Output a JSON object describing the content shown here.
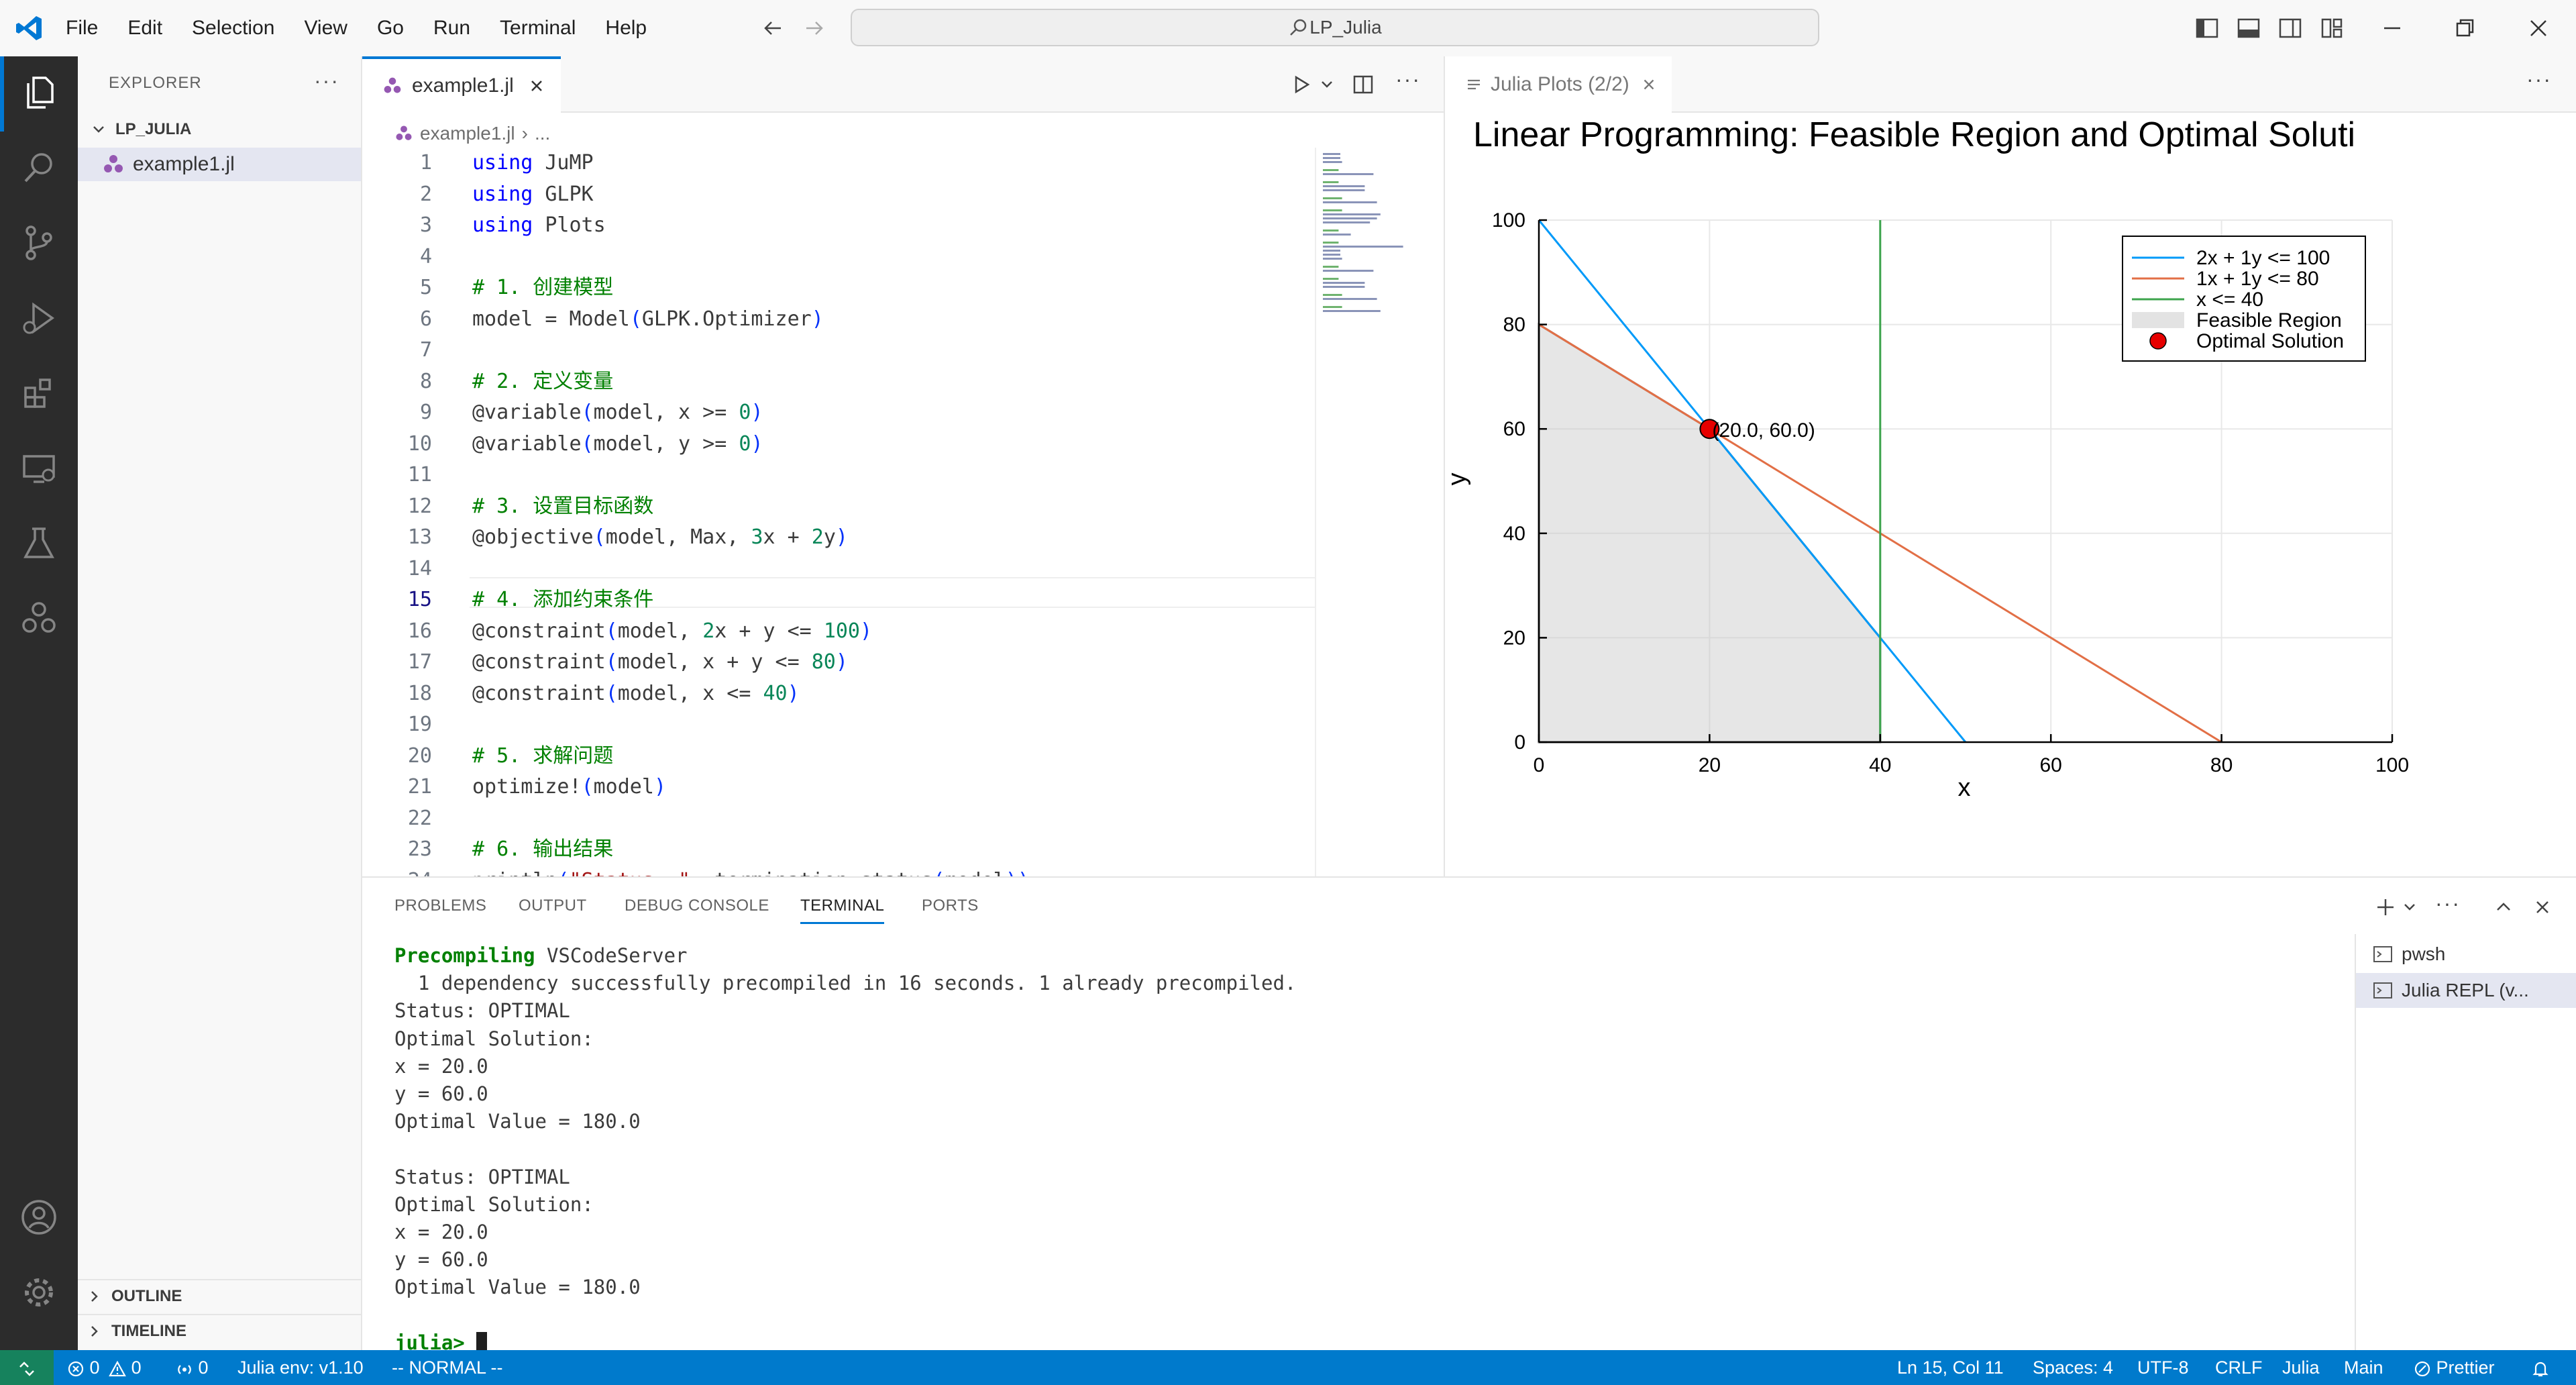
{
  "menu": [
    "File",
    "Edit",
    "Selection",
    "View",
    "Go",
    "Run",
    "Terminal",
    "Help"
  ],
  "search_text": "LP_Julia",
  "explorer": {
    "title": "EXPLORER",
    "folder": "LP_JULIA",
    "file": "example1.jl",
    "outline": "OUTLINE",
    "timeline": "TIMELINE"
  },
  "editor": {
    "tab": "example1.jl",
    "breadcrumb_file": "example1.jl",
    "breadcrumb_more": "...",
    "current_line": 15,
    "lines": [
      "using JuMP",
      "using GLPK",
      "using Plots",
      "",
      "# 1. 创建模型",
      "model = Model(GLPK.Optimizer)",
      "",
      "# 2. 定义变量",
      "@variable(model, x >= 0)",
      "@variable(model, y >= 0)",
      "",
      "# 3. 设置目标函数",
      "@objective(model, Max, 3x + 2y)",
      "",
      "# 4. 添加约束条件",
      "@constraint(model, 2x + y <= 100)",
      "@constraint(model, x + y <= 80)",
      "@constraint(model, x <= 40)",
      "",
      "# 5. 求解问题",
      "optimize!(model)",
      "",
      "# 6. 输出结果",
      "println(\"Status: \", termination_status(model))"
    ]
  },
  "plot_tab": "Julia Plots (2/2)",
  "chart_data": {
    "type": "line",
    "title": "Linear Programming: Feasible Region and Optimal Soluti",
    "xlabel": "x",
    "ylabel": "y",
    "xlim": [
      0,
      100
    ],
    "ylim": [
      0,
      100
    ],
    "xticks": [
      0,
      20,
      40,
      60,
      80,
      100
    ],
    "yticks": [
      0,
      20,
      40,
      60,
      80,
      100
    ],
    "grid": true,
    "legend_position": "top-right",
    "series": [
      {
        "name": "2x + 1y <= 100",
        "color": "#009af9",
        "points": [
          [
            0,
            100
          ],
          [
            50,
            0
          ]
        ]
      },
      {
        "name": "1x + 1y <= 80",
        "color": "#e26f46",
        "points": [
          [
            0,
            80
          ],
          [
            80,
            0
          ]
        ]
      },
      {
        "name": "x <= 40",
        "color": "#3da44d",
        "points": [
          [
            40,
            0
          ],
          [
            40,
            100
          ]
        ]
      }
    ],
    "feasible_region": {
      "name": "Feasible Region",
      "color": "#c8c8c8",
      "outline": "#555555",
      "points": [
        [
          0,
          0
        ],
        [
          0,
          80
        ],
        [
          20,
          60
        ],
        [
          40,
          20
        ],
        [
          40,
          0
        ]
      ]
    },
    "optimal": {
      "name": "Optimal Solution",
      "color": "#e60000",
      "x": 20,
      "y": 60,
      "label": "(20.0, 60.0)"
    }
  },
  "panel": {
    "tabs": [
      "PROBLEMS",
      "OUTPUT",
      "DEBUG CONSOLE",
      "TERMINAL",
      "PORTS"
    ],
    "active_tab": "TERMINAL",
    "terminal_lines": [
      {
        "bold": "Precompiling",
        "text": " VSCodeServer"
      },
      {
        "text": "  1 dependency successfully precompiled in 16 seconds. 1 already precompiled."
      },
      {
        "text": "Status: OPTIMAL"
      },
      {
        "text": "Optimal Solution:"
      },
      {
        "text": "x = 20.0"
      },
      {
        "text": "y = 60.0"
      },
      {
        "text": "Optimal Value = 180.0"
      },
      {
        "text": ""
      },
      {
        "text": "Status: OPTIMAL"
      },
      {
        "text": "Optimal Solution:"
      },
      {
        "text": "x = 20.0"
      },
      {
        "text": "y = 60.0"
      },
      {
        "text": "Optimal Value = 180.0"
      },
      {
        "text": ""
      }
    ],
    "prompt": "julia>",
    "terminals": [
      "pwsh",
      "Julia REPL (v..."
    ]
  },
  "status": {
    "problems": "0",
    "warnings": "0",
    "ports": "0",
    "julia_env": "Julia env: v1.10",
    "mode": "-- NORMAL --",
    "position": "Ln 15, Col 11",
    "spaces": "Spaces: 4",
    "encoding": "UTF-8",
    "eol": "CRLF",
    "language": "Julia",
    "branch": "Main",
    "prettier": "Prettier"
  }
}
